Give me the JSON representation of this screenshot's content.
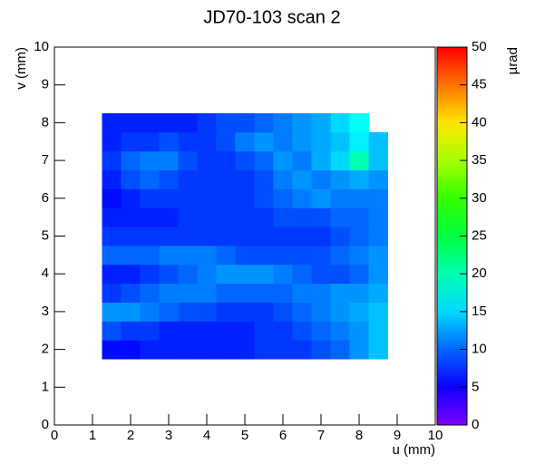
{
  "chart_data": {
    "type": "heatmap",
    "title": "JD70-103 scan 2",
    "x_label": "u (mm)",
    "y_label": "v (mm)",
    "z_label": "µrad",
    "xlim": [
      0,
      10
    ],
    "ylim": [
      0,
      10
    ],
    "zlim": [
      0,
      50
    ],
    "xticks": [
      0,
      1,
      2,
      3,
      4,
      5,
      6,
      7,
      8,
      9,
      10
    ],
    "yticks": [
      0,
      1,
      2,
      3,
      4,
      5,
      6,
      7,
      8,
      9,
      10
    ],
    "zticks": [
      0,
      5,
      10,
      15,
      20,
      25,
      30,
      35,
      40,
      45,
      50
    ],
    "xbins": [
      1.25,
      1.75,
      2.25,
      2.75,
      3.25,
      3.75,
      4.25,
      4.75,
      5.25,
      5.75,
      6.25,
      6.75,
      7.25,
      7.75,
      8.25,
      8.75
    ],
    "ybins": [
      1.75,
      2.25,
      2.75,
      3.25,
      3.75,
      4.25,
      4.75,
      5.25,
      5.75,
      6.25,
      6.75,
      7.25,
      7.75,
      8.25
    ],
    "z": [
      [
        6,
        6,
        7,
        7,
        7,
        7,
        7,
        7,
        8,
        8,
        8,
        9,
        10,
        12,
        14
      ],
      [
        9,
        8,
        8,
        7,
        7,
        7,
        7,
        7,
        8,
        8,
        9,
        10,
        11,
        12,
        14
      ],
      [
        12,
        12,
        11,
        10,
        9,
        9,
        8,
        8,
        8,
        9,
        10,
        11,
        12,
        13,
        14
      ],
      [
        8,
        9,
        10,
        11,
        11,
        11,
        10,
        10,
        10,
        10,
        11,
        11,
        12,
        12,
        13
      ],
      [
        7,
        7,
        8,
        9,
        10,
        11,
        12,
        12,
        12,
        11,
        10,
        9,
        9,
        10,
        12
      ],
      [
        10,
        10,
        10,
        11,
        11,
        11,
        10,
        9,
        9,
        9,
        9,
        9,
        10,
        11,
        12
      ],
      [
        8,
        8,
        8,
        8,
        8,
        8,
        8,
        8,
        8,
        8,
        8,
        8,
        9,
        10,
        11
      ],
      [
        7,
        7,
        7,
        7,
        8,
        8,
        8,
        8,
        8,
        9,
        9,
        9,
        10,
        10,
        11
      ],
      [
        6,
        7,
        8,
        8,
        8,
        8,
        8,
        8,
        9,
        10,
        11,
        12,
        11,
        11,
        11
      ],
      [
        7,
        9,
        10,
        9,
        8,
        8,
        8,
        8,
        9,
        11,
        12,
        11,
        12,
        13,
        12
      ],
      [
        8,
        10,
        11,
        11,
        9,
        8,
        8,
        9,
        10,
        12,
        11,
        13,
        15,
        20,
        14
      ],
      [
        7,
        8,
        8,
        9,
        8,
        8,
        9,
        11,
        12,
        11,
        12,
        13,
        14,
        16,
        14
      ],
      [
        7,
        7,
        7,
        7,
        7,
        8,
        9,
        9,
        10,
        11,
        12,
        13,
        15,
        17,
        null
      ]
    ]
  }
}
